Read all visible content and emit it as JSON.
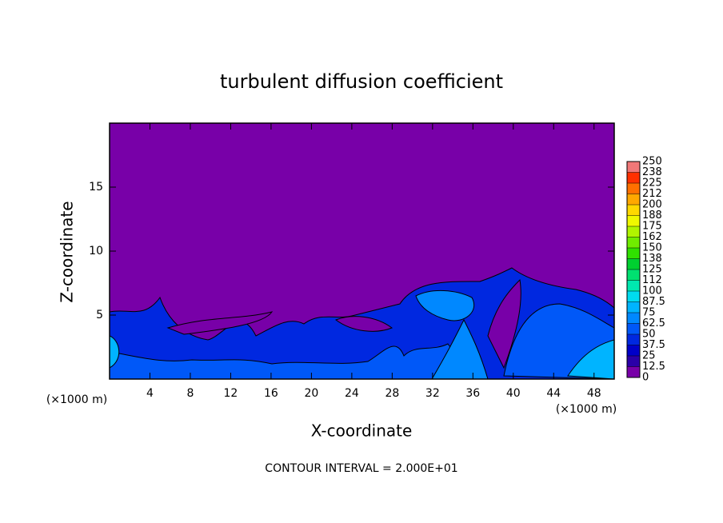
{
  "chart_data": {
    "type": "contour",
    "title": "turbulent diffusion coefficient",
    "x_label": "X-coordinate",
    "y_label": "Z-coordinate",
    "x_unit_label": "(×1000 m)",
    "y_unit_label": "(×1000 m)",
    "footer": "CONTOUR INTERVAL = 2.000E+01",
    "xlim": [
      0,
      50
    ],
    "xticks": [
      4,
      8,
      12,
      16,
      20,
      24,
      28,
      32,
      36,
      40,
      44,
      48
    ],
    "ylim": [
      0,
      20
    ],
    "yticks": [
      5,
      10,
      15
    ],
    "colorbar": {
      "levels": [
        0,
        12.5,
        25,
        37.5,
        50,
        62.5,
        75,
        87.5,
        100,
        112,
        125,
        138,
        150,
        162,
        175,
        188,
        200,
        212,
        225,
        238,
        250
      ],
      "colors": [
        "#7800a8",
        "#2a00a8",
        "#0000c8",
        "#0028e0",
        "#0058f8",
        "#0088ff",
        "#00b4ff",
        "#00dcf0",
        "#00e8b0",
        "#00e070",
        "#00d030",
        "#30e000",
        "#70ec00",
        "#b0f400",
        "#f0f800",
        "#ffd800",
        "#ffa800",
        "#ff7000",
        "#ff3000",
        "#f07878"
      ]
    }
  }
}
